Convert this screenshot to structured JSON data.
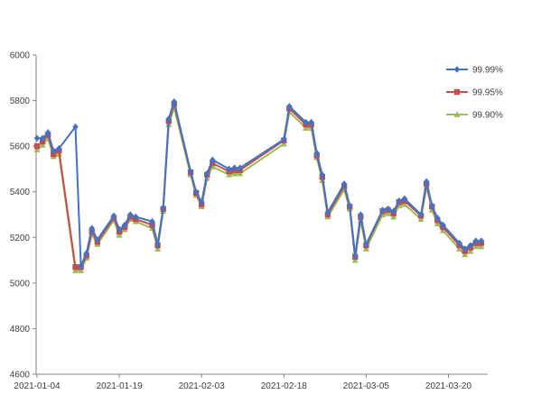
{
  "chart_data": {
    "type": "line",
    "title": "",
    "xlabel": "",
    "ylabel": "",
    "ylim": [
      4600,
      6000
    ],
    "y_ticks": [
      4600,
      4800,
      5000,
      5200,
      5400,
      5600,
      5800,
      6000
    ],
    "x_tick_labels": [
      "2021-01-04",
      "2021-01-19",
      "2021-02-03",
      "2021-02-18",
      "2021-03-05",
      "2021-03-20"
    ],
    "x_range": [
      "2021-01-04",
      "2021-03-26"
    ],
    "grid": false,
    "legend_position": "top-right",
    "x": [
      "2021-01-04",
      "2021-01-05",
      "2021-01-06",
      "2021-01-07",
      "2021-01-08",
      "2021-01-11",
      "2021-01-12",
      "2021-01-13",
      "2021-01-14",
      "2021-01-15",
      "2021-01-18",
      "2021-01-19",
      "2021-01-20",
      "2021-01-21",
      "2021-01-22",
      "2021-01-25",
      "2021-01-26",
      "2021-01-27",
      "2021-01-28",
      "2021-01-29",
      "2021-02-01",
      "2021-02-02",
      "2021-02-03",
      "2021-02-04",
      "2021-02-05",
      "2021-02-08",
      "2021-02-09",
      "2021-02-10",
      "2021-02-18",
      "2021-02-19",
      "2021-02-22",
      "2021-02-23",
      "2021-02-24",
      "2021-02-25",
      "2021-02-26",
      "2021-03-01",
      "2021-03-02",
      "2021-03-03",
      "2021-03-04",
      "2021-03-05",
      "2021-03-08",
      "2021-03-09",
      "2021-03-10",
      "2021-03-11",
      "2021-03-12",
      "2021-03-15",
      "2021-03-16",
      "2021-03-17",
      "2021-03-18",
      "2021-03-19",
      "2021-03-22",
      "2021-03-23",
      "2021-03-24",
      "2021-03-25",
      "2021-03-26"
    ],
    "series": [
      {
        "name": "99.99%",
        "color": "#4472C4",
        "marker": "diamond",
        "values": [
          5635,
          5635,
          5660,
          5580,
          5590,
          5685,
          5075,
          5130,
          5240,
          5190,
          5295,
          5235,
          5255,
          5300,
          5290,
          5270,
          5170,
          5330,
          5720,
          5795,
          5490,
          5400,
          5355,
          5480,
          5540,
          5500,
          5505,
          5505,
          5630,
          5775,
          5705,
          5705,
          5570,
          5475,
          5310,
          5435,
          5340,
          5120,
          5300,
          5170,
          5320,
          5325,
          5315,
          5360,
          5370,
          5300,
          5445,
          5340,
          5285,
          5255,
          5175,
          5150,
          5165,
          5185,
          5185
        ]
      },
      {
        "name": "99.95%",
        "color": "#C0504D",
        "marker": "square",
        "values": [
          5600,
          5620,
          5650,
          5565,
          5580,
          5070,
          5070,
          5120,
          5225,
          5180,
          5285,
          5225,
          5245,
          5290,
          5280,
          5255,
          5165,
          5325,
          5710,
          5785,
          5485,
          5395,
          5345,
          5475,
          5525,
          5490,
          5495,
          5495,
          5625,
          5765,
          5695,
          5695,
          5560,
          5465,
          5300,
          5425,
          5335,
          5115,
          5290,
          5165,
          5315,
          5320,
          5305,
          5355,
          5360,
          5295,
          5435,
          5335,
          5275,
          5245,
          5165,
          5140,
          5155,
          5175,
          5175
        ]
      },
      {
        "name": "99.90%",
        "color": "#9BBB59",
        "marker": "triangle",
        "values": [
          5585,
          5605,
          5635,
          5555,
          5565,
          5055,
          5055,
          5110,
          5215,
          5170,
          5275,
          5210,
          5235,
          5280,
          5270,
          5240,
          5150,
          5315,
          5695,
          5770,
          5475,
          5385,
          5335,
          5460,
          5510,
          5475,
          5480,
          5480,
          5610,
          5750,
          5680,
          5680,
          5550,
          5450,
          5290,
          5410,
          5325,
          5100,
          5275,
          5150,
          5300,
          5305,
          5290,
          5340,
          5345,
          5280,
          5420,
          5320,
          5260,
          5230,
          5150,
          5125,
          5140,
          5160,
          5160
        ]
      }
    ]
  }
}
